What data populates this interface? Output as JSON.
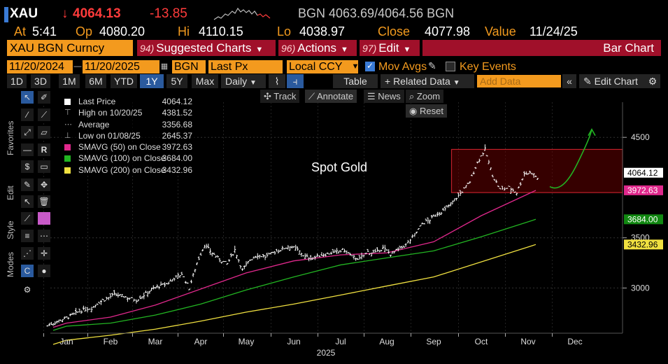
{
  "header": {
    "ticker": "XAU",
    "arrow": "↓",
    "last": "4064.13",
    "change": "-13.85",
    "bid": "BGN 4063.69",
    "sep": "/",
    "ask": "4064.56 BGN"
  },
  "info": {
    "at_label": "At",
    "at_value": "5:41",
    "op_label": "Op",
    "op_value": "4080.20",
    "hi_label": "Hi",
    "hi_value": "4110.15",
    "lo_label": "Lo",
    "lo_value": "4038.97",
    "close_label": "Close",
    "close_value": "4077.98",
    "value_label": "Value",
    "value_value": "11/24/25"
  },
  "function_bar": {
    "security": "XAU BGN Curncy",
    "suggested_num": "94)",
    "suggested": "Suggested Charts",
    "actions_num": "96)",
    "actions": "Actions",
    "edit_num": "97)",
    "edit": "Edit",
    "chart_type": "Bar Chart"
  },
  "settings": {
    "start_date": "11/20/2024",
    "end_date": "11/20/2025",
    "source": "BGN",
    "field": "Last Px",
    "currency": "Local CCY",
    "mov_avgs": "Mov Avgs",
    "key_events": "Key Events"
  },
  "toolbar": {
    "periods": [
      "1D",
      "3D",
      "1M",
      "6M",
      "YTD",
      "1Y",
      "5Y",
      "Max"
    ],
    "active_period": "1Y",
    "frequency": "Daily",
    "table": "Table",
    "related_data": "+ Related Data",
    "add_data_placeholder": "Add Data",
    "edit_chart": "Edit Chart"
  },
  "overlay_tools": {
    "track": "Track",
    "annotate": "Annotate",
    "news": "News",
    "zoom": "Zoom",
    "reset": "Reset"
  },
  "side_labels": {
    "favorites": "Favorites",
    "edit": "Edit",
    "style": "Style",
    "modes": "Modes"
  },
  "legend": [
    {
      "label": "Last Price",
      "value": "4064.12",
      "color": "#ffffff",
      "kind": "box"
    },
    {
      "label": "High on 10/20/25",
      "value": "4381.52",
      "color": "#aaaaaa",
      "kind": "high"
    },
    {
      "label": "Average",
      "value": "3356.68",
      "color": "#aaaaaa",
      "kind": "avg"
    },
    {
      "label": "Low on 01/08/25",
      "value": "2645.37",
      "color": "#aaaaaa",
      "kind": "low"
    },
    {
      "label": "SMAVG (50)  on Close",
      "value": "3972.63",
      "color": "#e0288c",
      "kind": "box"
    },
    {
      "label": "SMAVG (100)  on Close",
      "value": "3684.00",
      "color": "#22b422",
      "kind": "box"
    },
    {
      "label": "SMAVG (200)  on Close",
      "value": "3432.96",
      "color": "#f0e040",
      "kind": "box"
    }
  ],
  "annotation_text": "Spot Gold",
  "chart_data": {
    "type": "bar",
    "title": "Spot Gold",
    "series_name": "XAU BGN Curncy Last Px",
    "x_axis_labels": [
      "Jan",
      "Feb",
      "Mar",
      "Apr",
      "May",
      "Jun",
      "Jul",
      "Aug",
      "Sep",
      "Oct",
      "Nov",
      "Dec"
    ],
    "x_axis_year": "2025",
    "y_ticks": [
      "3000",
      "3500",
      "4500"
    ],
    "ylim": [
      2550,
      4850
    ],
    "last_price_tag": "4064.12",
    "sma50_tag": "3972.63",
    "sma100_tag": "3684.00",
    "sma200_tag": "3432.96",
    "colors": {
      "price": "#ffffff",
      "sma50": "#e0288c",
      "sma100": "#22b422",
      "sma200": "#f0e040",
      "range_box": "#8b0000",
      "projection": "#22b422"
    },
    "price_monthly": [
      {
        "month": "Jan",
        "values": [
          2625,
          2660,
          2690,
          2720,
          2760,
          2790
        ]
      },
      {
        "month": "Feb",
        "values": [
          2800,
          2860,
          2895,
          2935,
          2920,
          2900
        ]
      },
      {
        "month": "Mar",
        "values": [
          2880,
          2930,
          2985,
          3020,
          3040,
          3100
        ]
      },
      {
        "month": "Apr",
        "values": [
          3140,
          3000,
          3250,
          3430,
          3350,
          3280
        ]
      },
      {
        "month": "May",
        "values": [
          3240,
          3380,
          3180,
          3280,
          3330,
          3310
        ]
      },
      {
        "month": "Jun",
        "values": [
          3360,
          3390,
          3420,
          3380,
          3310,
          3300
        ]
      },
      {
        "month": "Jul",
        "values": [
          3330,
          3345,
          3360,
          3380,
          3310,
          3290
        ]
      },
      {
        "month": "Aug",
        "values": [
          3360,
          3350,
          3400,
          3340,
          3380,
          3430
        ]
      },
      {
        "month": "Sep",
        "values": [
          3530,
          3640,
          3680,
          3740,
          3780,
          3860
        ]
      },
      {
        "month": "Oct",
        "values": [
          3960,
          4060,
          4250,
          4380,
          4120,
          3980
        ]
      },
      {
        "month": "Nov",
        "values": [
          4000,
          3950,
          4140,
          4150,
          4070,
          4064
        ]
      }
    ],
    "sma50": [
      {
        "month": "Jan",
        "value": 2650
      },
      {
        "month": "Feb",
        "value": 2710
      },
      {
        "month": "Mar",
        "value": 2830
      },
      {
        "month": "Apr",
        "value": 2990
      },
      {
        "month": "May",
        "value": 3150
      },
      {
        "month": "Jun",
        "value": 3270
      },
      {
        "month": "Jul",
        "value": 3330
      },
      {
        "month": "Aug",
        "value": 3350
      },
      {
        "month": "Sep",
        "value": 3460
      },
      {
        "month": "Oct",
        "value": 3720
      },
      {
        "month": "Nov",
        "value": 3972
      }
    ],
    "sma100": [
      {
        "month": "Jan",
        "value": 2620
      },
      {
        "month": "Feb",
        "value": 2650
      },
      {
        "month": "Mar",
        "value": 2730
      },
      {
        "month": "Apr",
        "value": 2840
      },
      {
        "month": "May",
        "value": 2980
      },
      {
        "month": "Jun",
        "value": 3110
      },
      {
        "month": "Jul",
        "value": 3230
      },
      {
        "month": "Aug",
        "value": 3300
      },
      {
        "month": "Sep",
        "value": 3370
      },
      {
        "month": "Oct",
        "value": 3510
      },
      {
        "month": "Nov",
        "value": 3684
      }
    ],
    "sma200": [
      {
        "month": "Jan",
        "value": 2480
      },
      {
        "month": "Feb",
        "value": 2530
      },
      {
        "month": "Mar",
        "value": 2590
      },
      {
        "month": "Apr",
        "value": 2670
      },
      {
        "month": "May",
        "value": 2760
      },
      {
        "month": "Jun",
        "value": 2840
      },
      {
        "month": "Jul",
        "value": 2930
      },
      {
        "month": "Aug",
        "value": 3020
      },
      {
        "month": "Sep",
        "value": 3110
      },
      {
        "month": "Oct",
        "value": 3260
      },
      {
        "month": "Nov",
        "value": 3433
      }
    ],
    "range_box": {
      "x_start": "Oct",
      "x_end": "Dec",
      "y_low": 3950,
      "y_high": 4380
    },
    "projection": [
      {
        "month": "Nov",
        "value": 4010
      },
      {
        "month": "Dec",
        "value": 4220
      },
      {
        "month": "Dec",
        "value": 4580
      }
    ]
  }
}
